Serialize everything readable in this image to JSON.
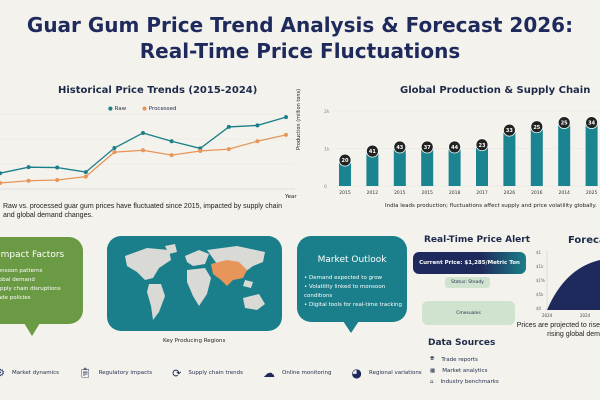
{
  "header": {
    "title_line1": "Guar Gum Price Trend Analysis & Forecast 2026:",
    "title_line2": "Real-Time Price Fluctuations"
  },
  "colors": {
    "navy": "#1f2a5c",
    "teal": "#1a8590",
    "orange": "#e8955a",
    "green": "#6b9a45",
    "light_green": "#cfe3cf",
    "background": "#f3f2ec"
  },
  "chart_data": [
    {
      "type": "line",
      "title": "Historical Price Trends (2015-2024)",
      "xlabel": "Year",
      "ylabel": "",
      "grid": true,
      "legend": "top-center",
      "x": [
        1,
        2,
        3,
        4,
        5,
        6,
        7,
        8,
        9,
        10,
        11
      ],
      "series": [
        {
          "name": "Raw",
          "color": "#1a7f8a",
          "values": [
            42,
            58,
            57,
            45,
            109,
            149,
            127,
            108,
            165,
            169,
            191
          ]
        },
        {
          "name": "Processed",
          "color": "#e8955a",
          "values": [
            16,
            22,
            24,
            33,
            98,
            103,
            90,
            101,
            106,
            127,
            144
          ]
        }
      ],
      "ylim": [
        0,
        210
      ],
      "caption": "Raw vs. processed guar gum prices have fluctuated since 2015, impacted by supply chain and global demand changes."
    },
    {
      "type": "bar",
      "title": "Global Production & Supply Chain",
      "ylabel": "Production (million tons)",
      "categories": [
        "2015",
        "2012",
        "2015",
        "2015",
        "2018",
        "2017",
        "2026",
        "2016",
        "2014",
        "2025"
      ],
      "values": [
        0.69,
        0.93,
        1.04,
        1.04,
        1.04,
        1.1,
        1.49,
        1.58,
        1.69,
        1.69
      ],
      "data_labels": [
        "20",
        "41",
        "43",
        "37",
        "44",
        "23",
        "33",
        "25",
        "25",
        "34"
      ],
      "yticks": [
        "0",
        "1k",
        "2k"
      ],
      "ylim": [
        0,
        2
      ],
      "caption": "India leads production; fluctuations affect supply and price volatility globally."
    },
    {
      "type": "area",
      "title": "Forecast",
      "xticks": [
        "2024",
        "2024"
      ],
      "yticks": [
        "$0",
        "$5k",
        "$1%",
        "$1k",
        "$1"
      ],
      "caption_line1": "Prices are projected to rise",
      "caption_line2": "rising global dem"
    }
  ],
  "impact": {
    "title": "Impact Factors",
    "items": [
      "Monsoon patterns",
      "Global demand",
      "Supply chain disruptions",
      "Trade policies"
    ]
  },
  "map": {
    "caption": "Key Producing Regions"
  },
  "outlook": {
    "title": "Market Outlook",
    "items": [
      "Demand expected to grow",
      "Volatility linked to monsoon conditions",
      "Digital tools for real-time tracking"
    ]
  },
  "alert": {
    "title": "Real-Time Price Alert",
    "current": "Current Price: $1,285/Metric Ton",
    "status": "Status: Steady",
    "box": "Cmesuales"
  },
  "sources": {
    "title": "Data Sources",
    "items": [
      {
        "icon": "globe-icon",
        "label": "Trade reports"
      },
      {
        "icon": "building-icon",
        "label": "Market analytics"
      },
      {
        "icon": "factory-icon",
        "label": "Industry benchmarks"
      }
    ]
  },
  "footer": [
    {
      "icon": "gear-icon",
      "label": "Market dynamics"
    },
    {
      "icon": "clipboard-icon",
      "label": "Regulatory impacts"
    },
    {
      "icon": "cycle-icon",
      "label": "Supply chain trends"
    },
    {
      "icon": "cloud-upload-icon",
      "label": "Online monitoring"
    },
    {
      "icon": "pie-chart-icon",
      "label": "Regional variations"
    }
  ]
}
